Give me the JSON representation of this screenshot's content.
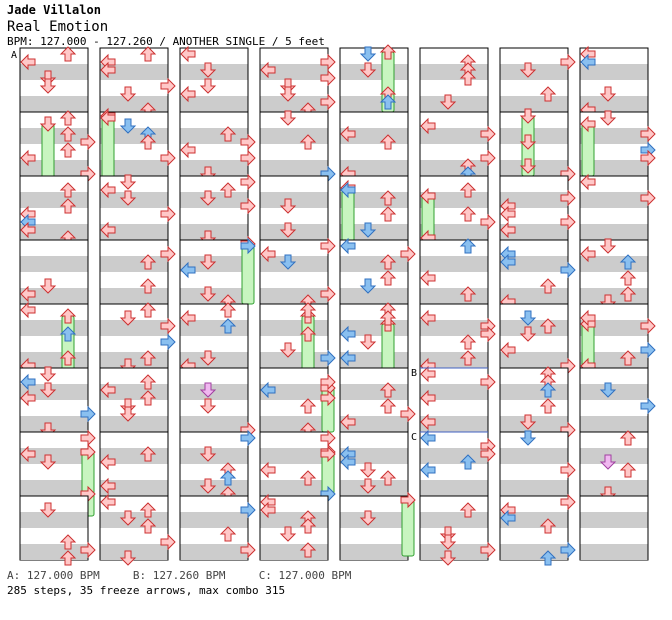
{
  "song": {
    "artist": "Jade Villalon",
    "title": "Real Emotion",
    "info": "BPM: 127.000 - 127.260 / ANOTHER SINGLE / 5 feet"
  },
  "section_markers": {
    "a": "A",
    "b": "B",
    "c": "C"
  },
  "footer": {
    "bpm_a": "A: 127.000 BPM",
    "bpm_b": "B: 127.260 BPM",
    "bpm_c": "C: 127.000 BPM",
    "stats": "285 steps, 35 freeze arrows, max combo 315"
  },
  "colors": {
    "stripe_gray": "#cccccc",
    "arrow_red_fill": "#ffc8c8",
    "arrow_red_stroke": "#cc3030",
    "arrow_blue_fill": "#8ac0f0",
    "arrow_blue_stroke": "#3070c0",
    "arrow_purple_fill": "#f0b8f0",
    "arrow_purple_stroke": "#a040a0",
    "freeze_fill": "#c8f5c0",
    "freeze_stroke": "#30a030",
    "bpm_line": "#4060c0"
  },
  "legend_icons": [
    "left-arrow-icon",
    "down-arrow-icon",
    "up-arrow-icon",
    "right-arrow-icon"
  ]
}
